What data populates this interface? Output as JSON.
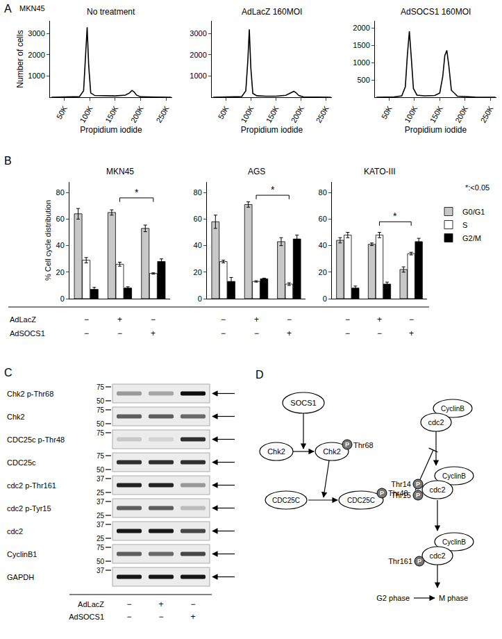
{
  "panels": {
    "A": {
      "label": "A",
      "cell_line": "MKN45"
    },
    "B": {
      "label": "B",
      "note": "*:<0.05",
      "treatments": [
        {
          "name": "AdLacZ",
          "signs": [
            "−",
            "+",
            "−"
          ]
        },
        {
          "name": "AdSOCS1",
          "signs": [
            "−",
            "−",
            "+"
          ]
        }
      ]
    }
  },
  "chart_data": [
    {
      "type": "line",
      "title": "No treatment",
      "x_label": "Propidium iodide",
      "y_label": "Number of cells",
      "color": "#000000",
      "x": [
        25000,
        60000,
        80000,
        88000,
        92000,
        95000,
        98000,
        102000,
        110000,
        130000,
        150000,
        170000,
        178000,
        183000,
        187000,
        192000,
        200000,
        230000,
        260000
      ],
      "values": [
        0,
        5,
        30,
        300,
        1800,
        3300,
        1500,
        200,
        80,
        60,
        60,
        100,
        200,
        320,
        250,
        100,
        20,
        5,
        0
      ],
      "xlim": [
        22000,
        262000
      ],
      "xticks": [
        {
          "value": 50000,
          "label": "50K"
        },
        {
          "value": 100000,
          "label": "100K"
        },
        {
          "value": 150000,
          "label": "150K"
        },
        {
          "value": 200000,
          "label": "200K"
        },
        {
          "value": 250000,
          "label": "250K"
        }
      ],
      "ylim": [
        0,
        3600
      ],
      "yticks": [
        1000,
        2000,
        3000
      ]
    },
    {
      "type": "line",
      "title": "AdLacZ 160MOI",
      "x_label": "Propidium iodide",
      "color": "#000000",
      "x": [
        25000,
        60000,
        82000,
        90000,
        94000,
        97000,
        100000,
        104000,
        112000,
        130000,
        150000,
        170000,
        180000,
        186000,
        190000,
        196000,
        205000,
        230000,
        260000
      ],
      "values": [
        0,
        5,
        30,
        300,
        1700,
        3200,
        1400,
        180,
        70,
        50,
        50,
        90,
        200,
        280,
        220,
        80,
        15,
        5,
        0
      ],
      "xlim": [
        22000,
        262000
      ],
      "xticks": [
        {
          "value": 50000,
          "label": "50K"
        },
        {
          "value": 100000,
          "label": "100K"
        },
        {
          "value": 150000,
          "label": "150K"
        },
        {
          "value": 200000,
          "label": "200K"
        },
        {
          "value": 250000,
          "label": "250K"
        }
      ],
      "ylim": [
        0,
        3600
      ],
      "yticks": [
        1000,
        2000,
        3000
      ]
    },
    {
      "type": "line",
      "title": "AdSOCS1 160MOI",
      "x_label": "Propidium iodide",
      "color": "#000000",
      "x": [
        25000,
        60000,
        75000,
        82000,
        86000,
        90000,
        94000,
        98000,
        105000,
        120000,
        140000,
        150000,
        156000,
        160000,
        164000,
        168000,
        173000,
        185000,
        220000,
        260000
      ],
      "values": [
        0,
        10,
        40,
        300,
        1200,
        1900,
        1100,
        250,
        60,
        40,
        50,
        120,
        600,
        1200,
        1350,
        900,
        200,
        30,
        5,
        0
      ],
      "xlim": [
        22000,
        262000
      ],
      "xticks": [
        {
          "value": 50000,
          "label": "50K"
        },
        {
          "value": 100000,
          "label": "100K"
        },
        {
          "value": 150000,
          "label": "150K"
        },
        {
          "value": 200000,
          "label": "200K"
        },
        {
          "value": 250000,
          "label": "250K"
        }
      ],
      "ylim": [
        0,
        2200
      ],
      "yticks": [
        500,
        1000,
        1500,
        2000
      ]
    },
    {
      "type": "bar",
      "title": "MKN45",
      "y_label": "% Cell cycle distribution",
      "categories": [
        null,
        null,
        null
      ],
      "tick_labels": "y",
      "series": [
        {
          "name": "G0/G1",
          "color": "#c8c8c8",
          "values": [
            64,
            65,
            53
          ],
          "errors": [
            4,
            2,
            2.5
          ]
        },
        {
          "name": "S",
          "color": "#ffffff",
          "values": [
            29,
            26,
            19
          ],
          "errors": [
            2,
            1.5,
            0.5
          ]
        },
        {
          "name": "G2/M",
          "color": "#000000",
          "values": [
            7,
            8,
            28
          ],
          "errors": [
            1.5,
            1,
            2
          ]
        }
      ],
      "ylim": [
        0,
        88
      ],
      "yticks": [
        0,
        20,
        40,
        60,
        80
      ],
      "significance": {
        "between": [
          1,
          2
        ],
        "y": 76,
        "label": "*"
      }
    },
    {
      "type": "bar",
      "title": "AGS",
      "categories": [
        null,
        null,
        null
      ],
      "tick_labels": "y",
      "series": [
        {
          "name": "G0/G1",
          "color": "#c8c8c8",
          "values": [
            58,
            71,
            43
          ],
          "errors": [
            5,
            2,
            3
          ]
        },
        {
          "name": "S",
          "color": "#ffffff",
          "values": [
            28,
            13,
            11
          ],
          "errors": [
            1,
            0.5,
            1
          ]
        },
        {
          "name": "G2/M",
          "color": "#000000",
          "values": [
            13,
            15,
            45
          ],
          "errors": [
            3,
            0.5,
            3
          ]
        }
      ],
      "ylim": [
        0,
        88
      ],
      "yticks": [
        0,
        20,
        40,
        60,
        80
      ],
      "significance": {
        "between": [
          1,
          2
        ],
        "y": 78,
        "label": "*"
      }
    },
    {
      "type": "bar",
      "title": "KATO-III",
      "categories": [
        null,
        null,
        null
      ],
      "tick_labels": "y",
      "legend": "right",
      "series": [
        {
          "name": "G0/G1",
          "color": "#c8c8c8",
          "values": [
            44,
            41,
            22
          ],
          "errors": [
            2,
            1,
            2
          ]
        },
        {
          "name": "S",
          "color": "#ffffff",
          "values": [
            48,
            48,
            34
          ],
          "errors": [
            2,
            2,
            1
          ]
        },
        {
          "name": "G2/M",
          "color": "#000000",
          "values": [
            8,
            11,
            43
          ],
          "errors": [
            1.5,
            1.5,
            2.5
          ]
        }
      ],
      "ylim": [
        0,
        88
      ],
      "yticks": [
        0,
        20,
        40,
        60,
        80
      ],
      "significance": {
        "between": [
          1,
          2
        ],
        "y": 58,
        "label": "*"
      }
    }
  ],
  "blot": {
    "label": "C",
    "rows": [
      {
        "name": "Chk2 p-Thr68",
        "markers": [
          75,
          50
        ],
        "intensity": [
          0.35,
          0.3,
          0.95
        ]
      },
      {
        "name": "Chk2",
        "markers": [
          75,
          50
        ],
        "intensity": [
          0.6,
          0.6,
          0.55
        ]
      },
      {
        "name": "CDC25c p-Thr48",
        "markers": [
          75
        ],
        "intensity": [
          0.15,
          0.1,
          0.8
        ]
      },
      {
        "name": "CDC25c",
        "markers": [
          75,
          50
        ],
        "intensity": [
          0.8,
          0.8,
          0.8
        ]
      },
      {
        "name": "cdc2 p-Thr161",
        "markers": [
          37,
          25
        ],
        "intensity": [
          0.85,
          0.85,
          0.35
        ]
      },
      {
        "name": "cdc2 p-Tyr15",
        "markers": [
          37,
          25
        ],
        "intensity": [
          0.6,
          0.6,
          0.2
        ]
      },
      {
        "name": "cdc2",
        "markers": [
          37,
          25
        ],
        "intensity": [
          0.9,
          0.9,
          0.7
        ]
      },
      {
        "name": "CyclinB1",
        "markers": [
          75,
          50
        ],
        "intensity": [
          0.6,
          0.55,
          0.7
        ]
      },
      {
        "name": "GAPDH",
        "markers": [
          37
        ],
        "intensity": [
          0.9,
          0.9,
          0.9
        ]
      }
    ],
    "treatments": [
      {
        "name": "AdLacZ",
        "signs": [
          "−",
          "+",
          "−"
        ]
      },
      {
        "name": "AdSOCS1",
        "signs": [
          "−",
          "−",
          "+"
        ]
      }
    ]
  },
  "diagram": {
    "label": "D",
    "socs1": "SOCS1",
    "chk2": "Chk2",
    "chk2_site": "Thr68",
    "cdc25c": "CDC25C",
    "cdc25c_site": "Thr48",
    "cdc2": "cdc2",
    "cyclin": "CyclinB",
    "inhibitory_sites": [
      "Thr14",
      "Thr15"
    ],
    "activating_site": "Thr161",
    "phospho": "P",
    "from_phase": "G2 phase",
    "to_phase": "M phase"
  }
}
